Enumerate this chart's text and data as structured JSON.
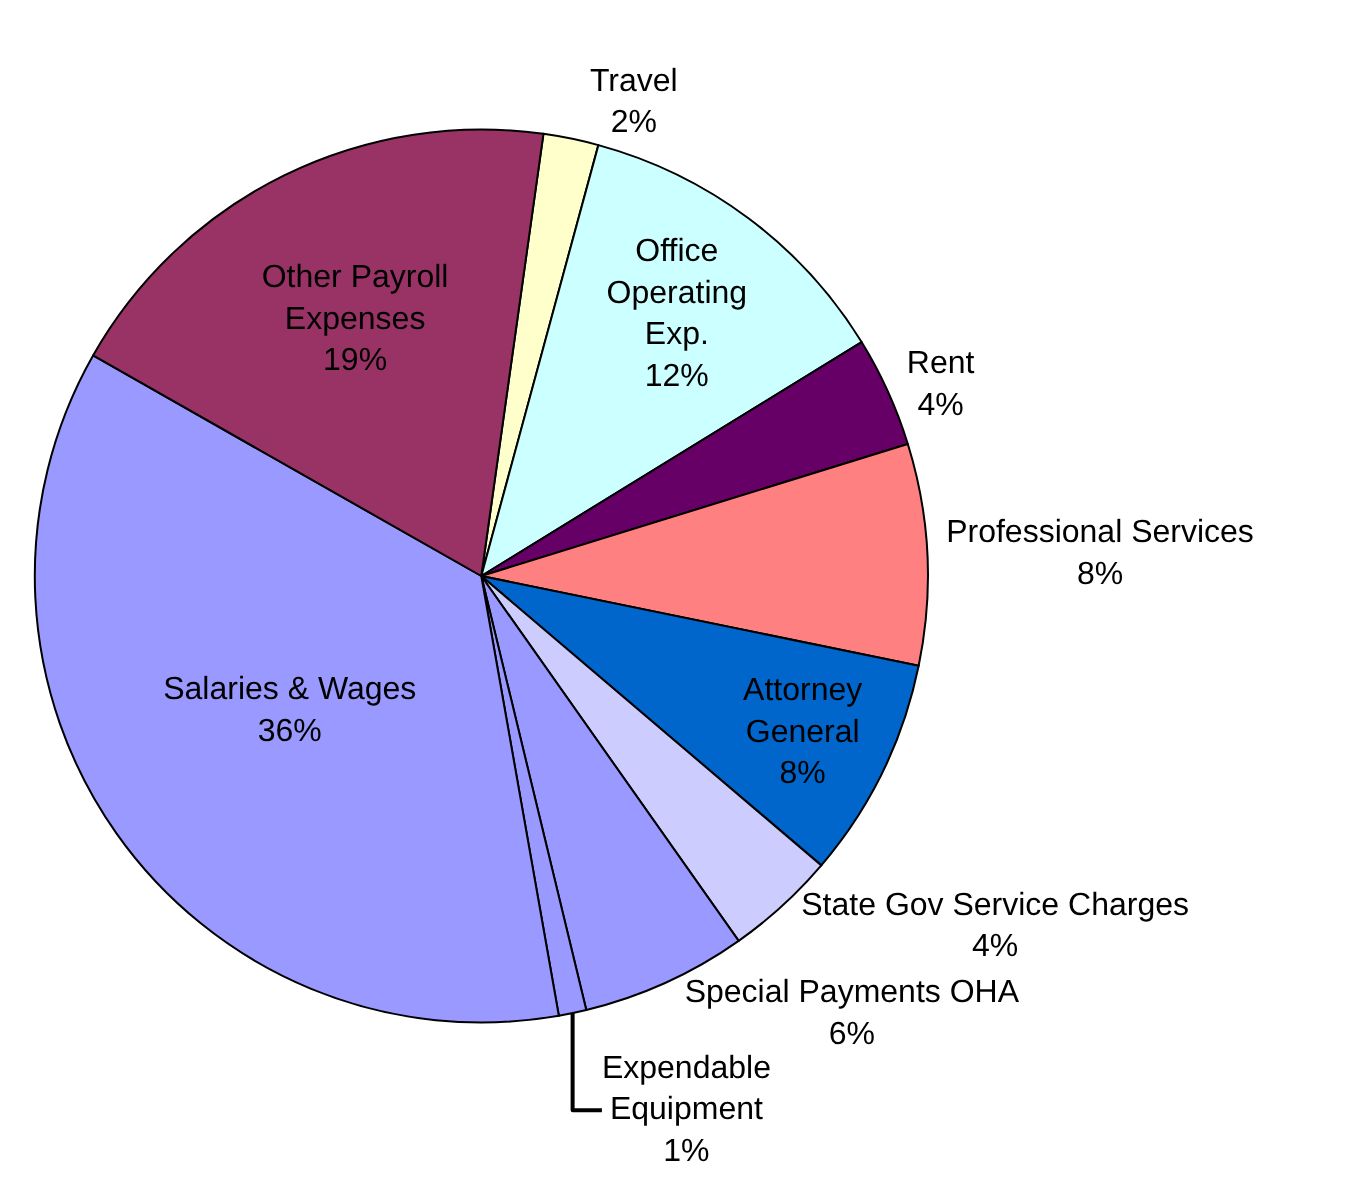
{
  "chart_data": {
    "type": "pie",
    "categories": [
      "Travel",
      "Office\nOperating\nExp.",
      "Rent",
      "Professional Services",
      "Attorney\nGeneral",
      "State Gov Service Charges",
      "Special Payments OHA",
      "Expendable\nEquipment",
      "Salaries & Wages",
      "Other Payroll\nExpenses"
    ],
    "values": [
      2,
      12,
      4,
      8,
      8,
      4,
      6,
      1,
      36,
      19
    ],
    "colors": [
      "#ffffcc",
      "#ccffff",
      "#660066",
      "#ff8080",
      "#0066cc",
      "#ccccff",
      "#9999ff",
      "#9999ff",
      "#9999ff",
      "#993366"
    ],
    "value_labels": [
      "2%",
      "12%",
      "4%",
      "8%",
      "8%",
      "4%",
      "6%",
      "1%",
      "36%",
      "19%"
    ],
    "legend": false
  }
}
